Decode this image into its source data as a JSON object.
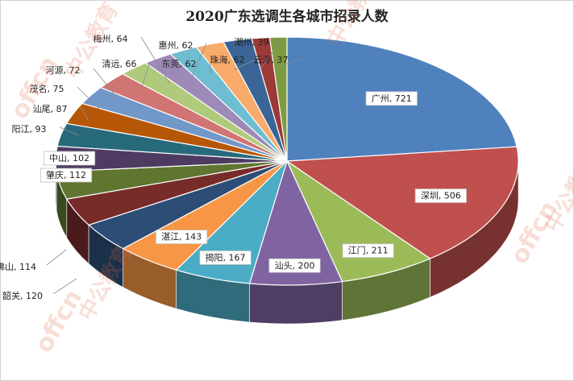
{
  "chart_data": {
    "type": "pie",
    "title": "2020广东选调生各城市招录人数",
    "label_separator": ", ",
    "slices": [
      {
        "label": "广州",
        "value": 721,
        "color": "#4f81bd"
      },
      {
        "label": "深圳",
        "value": 506,
        "color": "#c0504d"
      },
      {
        "label": "江门",
        "value": 211,
        "color": "#9bbb59"
      },
      {
        "label": "汕头",
        "value": 200,
        "color": "#8064a2"
      },
      {
        "label": "揭阳",
        "value": 167,
        "color": "#4bacc6"
      },
      {
        "label": "湛江",
        "value": 143,
        "color": "#f79646"
      },
      {
        "label": "韶关",
        "value": 120,
        "color": "#2c4d75"
      },
      {
        "label": "佛山",
        "value": 114,
        "color": "#772c2a"
      },
      {
        "label": "肇庆",
        "value": 112,
        "color": "#5f7530"
      },
      {
        "label": "中山",
        "value": 102,
        "color": "#4d3b62"
      },
      {
        "label": "阳江",
        "value": 93,
        "color": "#276a7c"
      },
      {
        "label": "汕尾",
        "value": 87,
        "color": "#b65708"
      },
      {
        "label": "茂名",
        "value": 75,
        "color": "#7297c9"
      },
      {
        "label": "河源",
        "value": 72,
        "color": "#d07573"
      },
      {
        "label": "清远",
        "value": 66,
        "color": "#b0ca7b"
      },
      {
        "label": "梅州",
        "value": 64,
        "color": "#9d8ab8"
      },
      {
        "label": "惠州",
        "value": 62,
        "color": "#6fbdd1"
      },
      {
        "label": "东莞",
        "value": 62,
        "color": "#f9ab6b"
      },
      {
        "label": "珠海",
        "value": 62,
        "color": "#3a6596"
      },
      {
        "label": "潮州",
        "value": 39,
        "color": "#9c3a38"
      },
      {
        "label": "云浮",
        "value": 37,
        "color": "#7d9b41"
      }
    ]
  },
  "watermark": {
    "brand": "offcn",
    "brand_cn": "中公教育"
  }
}
